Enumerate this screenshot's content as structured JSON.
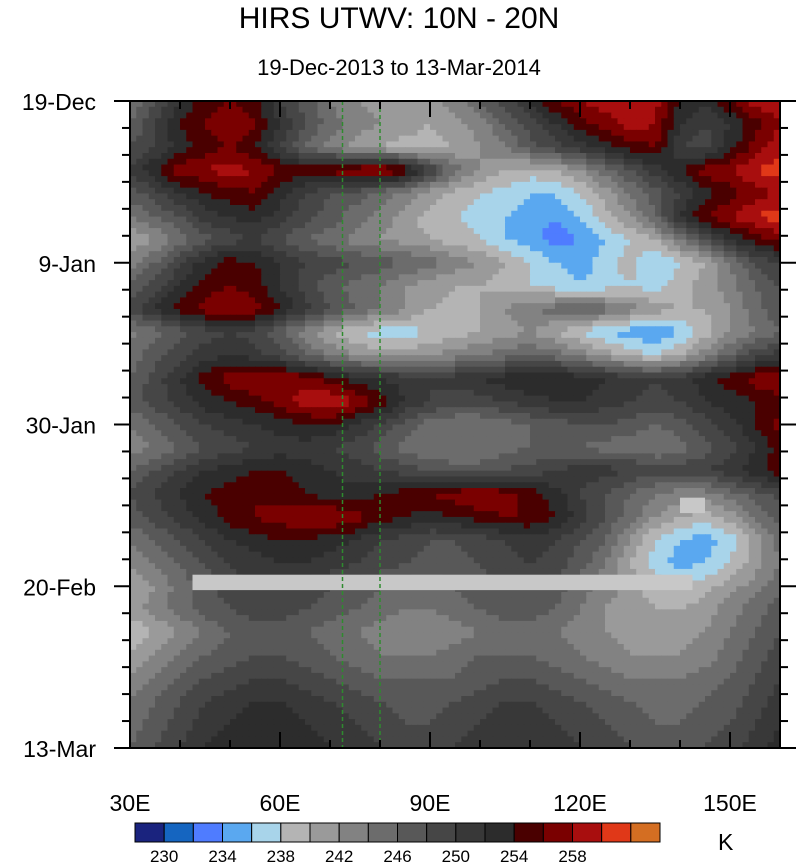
{
  "chart_data": {
    "type": "heatmap",
    "title": "HIRS UTWV: 10N - 20N",
    "subtitle": "19-Dec-2013 to 13-Mar-2014",
    "x_axis": {
      "range": [
        30,
        160
      ],
      "ticks": [
        30,
        60,
        90,
        120,
        150
      ],
      "tick_labels": [
        "30E",
        "60E",
        "90E",
        "120E",
        "150E"
      ]
    },
    "y_axis": {
      "range_days": [
        0,
        84
      ],
      "ticks_days": [
        0,
        21,
        42,
        63,
        84
      ],
      "tick_labels": [
        "19-Dec",
        "9-Jan",
        "30-Jan",
        "20-Feb",
        "13-Mar"
      ]
    },
    "colorbar": {
      "unit": "K",
      "levels": [
        230,
        232,
        234,
        236,
        238,
        240,
        242,
        244,
        246,
        248,
        250,
        252,
        254,
        256,
        258,
        260
      ],
      "tick_labels": [
        "230",
        "234",
        "238",
        "242",
        "246",
        "250",
        "254",
        "258"
      ],
      "colors": [
        "#1a237e",
        "#1565c0",
        "#4f7cff",
        "#5aa8f0",
        "#a8d4ea",
        "#b4b4b4",
        "#9a9a9a",
        "#828282",
        "#6c6c6c",
        "#585858",
        "#464646",
        "#383838",
        "#2c2c2c",
        "#4a0000",
        "#7a0000",
        "#a80e0e",
        "#e03818",
        "#d46e22"
      ]
    },
    "reference_lines": {
      "lons": [
        72.5,
        80
      ],
      "color": "#2e8b2e",
      "style": "dashed"
    },
    "missing_data": {
      "color": "#c8c8c8",
      "regions": [
        {
          "lon": [
            42.5,
            142.5
          ],
          "day": [
            61.5,
            63.5
          ]
        },
        {
          "lon": [
            140,
            145
          ],
          "day": [
            51.5,
            53.5
          ]
        }
      ]
    },
    "values_K": {
      "lon_start": 30,
      "lon_step": 5,
      "day_start": 0,
      "day_step": 3,
      "grid": [
        [
          244,
          248,
          252,
          255,
          256,
          255,
          250,
          247,
          244,
          242,
          241,
          240,
          241,
          243,
          246,
          249,
          252,
          256,
          258,
          259,
          260,
          259,
          254,
          252,
          256,
          259,
          260
        ],
        [
          246,
          250,
          254,
          256,
          258,
          256,
          252,
          248,
          245,
          243,
          242,
          241,
          240,
          241,
          243,
          246,
          249,
          252,
          255,
          257,
          259,
          258,
          252,
          250,
          252,
          255,
          258
        ],
        [
          248,
          250,
          253,
          255,
          256,
          254,
          250,
          246,
          243,
          241,
          240,
          239,
          239,
          240,
          242,
          244,
          247,
          249,
          251,
          253,
          255,
          256,
          250,
          249,
          253,
          257,
          259
        ],
        [
          250,
          254,
          257,
          258,
          259,
          258,
          256,
          255,
          257,
          258,
          259,
          256,
          250,
          245,
          242,
          240,
          239,
          240,
          242,
          245,
          248,
          251,
          254,
          257,
          258,
          260,
          261
        ],
        [
          247,
          249,
          252,
          254,
          255,
          256,
          253,
          250,
          248,
          247,
          245,
          243,
          241,
          239,
          238,
          237,
          236,
          236,
          238,
          241,
          244,
          247,
          250,
          253,
          255,
          257,
          258
        ],
        [
          244,
          246,
          248,
          251,
          252,
          253,
          251,
          249,
          247,
          245,
          243,
          241,
          239,
          238,
          237,
          236,
          235,
          234,
          236,
          239,
          242,
          246,
          252,
          256,
          258,
          260,
          261
        ],
        [
          240,
          242,
          245,
          247,
          249,
          250,
          248,
          246,
          245,
          243,
          242,
          241,
          240,
          239,
          238,
          236,
          235,
          233,
          234,
          236,
          238,
          240,
          244,
          248,
          252,
          255,
          257
        ],
        [
          243,
          246,
          250,
          253,
          255,
          254,
          252,
          250,
          249,
          248,
          247,
          246,
          245,
          243,
          242,
          240,
          238,
          236,
          235,
          237,
          239,
          236,
          238,
          240,
          244,
          248,
          250
        ],
        [
          246,
          249,
          252,
          255,
          256,
          255,
          252,
          249,
          247,
          245,
          244,
          242,
          241,
          240,
          240,
          239,
          238,
          237,
          236,
          237,
          238,
          237,
          239,
          241,
          243,
          246,
          248
        ],
        [
          249,
          252,
          255,
          257,
          258,
          257,
          254,
          251,
          248,
          246,
          244,
          242,
          240,
          239,
          240,
          242,
          244,
          245,
          246,
          245,
          243,
          241,
          240,
          240,
          242,
          245,
          248
        ],
        [
          243,
          245,
          247,
          249,
          250,
          249,
          246,
          243,
          240,
          238,
          237,
          237,
          238,
          239,
          240,
          241,
          242,
          240,
          238,
          236,
          235,
          234,
          236,
          239,
          242,
          244,
          246
        ],
        [
          245,
          247,
          249,
          251,
          252,
          251,
          249,
          246,
          244,
          242,
          241,
          241,
          242,
          243,
          244,
          245,
          246,
          245,
          243,
          241,
          239,
          238,
          240,
          243,
          246,
          249,
          251
        ],
        [
          246,
          249,
          252,
          255,
          257,
          258,
          258,
          257,
          255,
          253,
          252,
          251,
          250,
          251,
          252,
          253,
          254,
          254,
          253,
          252,
          251,
          250,
          251,
          253,
          255,
          257,
          258
        ],
        [
          247,
          249,
          251,
          253,
          254,
          255,
          257,
          259,
          260,
          258,
          255,
          252,
          250,
          249,
          249,
          250,
          251,
          252,
          252,
          251,
          250,
          249,
          250,
          252,
          253,
          254,
          255
        ],
        [
          244,
          246,
          248,
          250,
          251,
          252,
          253,
          254,
          254,
          252,
          250,
          247,
          245,
          244,
          244,
          245,
          246,
          247,
          248,
          248,
          247,
          246,
          247,
          249,
          251,
          254,
          257
        ],
        [
          243,
          244,
          246,
          248,
          249,
          250,
          251,
          251,
          250,
          249,
          247,
          245,
          244,
          244,
          244,
          245,
          246,
          246,
          246,
          245,
          245,
          244,
          245,
          247,
          249,
          252,
          255
        ],
        [
          246,
          248,
          250,
          252,
          253,
          254,
          254,
          253,
          252,
          251,
          250,
          249,
          248,
          247,
          247,
          248,
          249,
          250,
          251,
          251,
          250,
          249,
          249,
          250,
          251,
          253,
          255
        ],
        [
          248,
          250,
          252,
          254,
          255,
          256,
          255,
          254,
          253,
          253,
          254,
          255,
          256,
          257,
          258,
          257,
          255,
          253,
          250,
          248,
          246,
          244,
          243,
          243,
          245,
          247,
          249
        ],
        [
          247,
          249,
          251,
          253,
          255,
          256,
          257,
          258,
          258,
          257,
          255,
          254,
          253,
          254,
          255,
          256,
          256,
          254,
          251,
          248,
          245,
          242,
          240,
          239,
          241,
          244,
          247
        ],
        [
          244,
          246,
          248,
          250,
          252,
          253,
          254,
          254,
          253,
          252,
          250,
          249,
          248,
          248,
          249,
          250,
          251,
          250,
          248,
          246,
          242,
          238,
          236,
          235,
          237,
          241,
          245
        ],
        [
          242,
          244,
          246,
          248,
          250,
          251,
          252,
          252,
          251,
          250,
          249,
          248,
          247,
          247,
          248,
          249,
          250,
          249,
          247,
          244,
          240,
          237,
          235,
          236,
          238,
          241,
          244
        ],
        [
          240,
          242,
          245,
          247,
          249,
          250,
          250,
          249,
          248,
          247,
          246,
          245,
          245,
          246,
          247,
          248,
          248,
          247,
          245,
          243,
          241,
          239,
          238,
          239,
          241,
          243,
          245
        ],
        [
          241,
          243,
          245,
          247,
          248,
          249,
          249,
          248,
          247,
          246,
          245,
          244,
          244,
          245,
          246,
          247,
          247,
          246,
          244,
          242,
          241,
          240,
          240,
          241,
          243,
          245,
          247
        ],
        [
          238,
          240,
          242,
          244,
          246,
          247,
          247,
          246,
          245,
          244,
          243,
          242,
          242,
          243,
          244,
          245,
          245,
          244,
          243,
          242,
          241,
          240,
          241,
          242,
          244,
          246,
          248
        ],
        [
          240,
          242,
          244,
          246,
          247,
          248,
          248,
          247,
          246,
          245,
          244,
          244,
          244,
          245,
          246,
          246,
          246,
          245,
          244,
          243,
          242,
          242,
          242,
          243,
          245,
          247,
          249
        ],
        [
          242,
          244,
          246,
          248,
          249,
          250,
          250,
          249,
          248,
          247,
          246,
          246,
          246,
          246,
          247,
          248,
          248,
          247,
          246,
          245,
          244,
          244,
          244,
          245,
          246,
          248,
          250
        ],
        [
          244,
          246,
          248,
          250,
          251,
          252,
          252,
          251,
          250,
          249,
          248,
          247,
          247,
          248,
          249,
          250,
          250,
          249,
          248,
          247,
          246,
          245,
          245,
          246,
          247,
          249,
          251
        ],
        [
          245,
          247,
          249,
          251,
          252,
          253,
          253,
          252,
          251,
          250,
          249,
          248,
          248,
          249,
          250,
          251,
          251,
          250,
          249,
          248,
          247,
          246,
          246,
          247,
          248,
          250,
          252
        ],
        [
          246,
          248,
          250,
          252,
          253,
          254,
          254,
          253,
          252,
          251,
          250,
          249,
          249,
          250,
          251,
          252,
          252,
          251,
          250,
          249,
          248,
          247,
          247,
          248,
          249,
          251,
          253
        ]
      ]
    }
  }
}
